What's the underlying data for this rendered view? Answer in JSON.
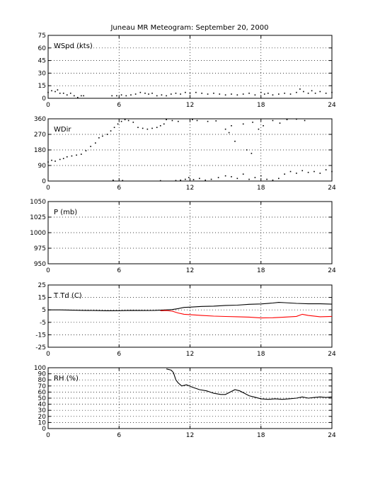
{
  "title": "Juneau MR Meteogram: September 20, 2000",
  "chart_data": [
    {
      "type": "scatter",
      "label": "WSpd (kts)",
      "xlim": [
        0,
        24
      ],
      "ylim": [
        0,
        75
      ],
      "x_ticks": [
        0,
        6,
        12,
        18,
        24
      ],
      "y_ticks": [
        0,
        15,
        30,
        45,
        60,
        75
      ],
      "grid": true,
      "series": [
        {
          "color": "#000000",
          "points": [
            [
              0,
              7
            ],
            [
              0.3,
              9
            ],
            [
              0.6,
              8
            ],
            [
              0.8,
              10
            ],
            [
              1.0,
              6
            ],
            [
              1.3,
              6
            ],
            [
              1.6,
              4
            ],
            [
              1.9,
              6
            ],
            [
              2.2,
              3
            ],
            [
              2.5,
              1
            ],
            [
              2.8,
              3
            ],
            [
              3.0,
              3
            ],
            [
              5.4,
              3
            ],
            [
              5.8,
              3
            ],
            [
              6.2,
              4
            ],
            [
              6.6,
              3
            ],
            [
              7.0,
              4
            ],
            [
              7.4,
              5
            ],
            [
              7.8,
              7
            ],
            [
              8.2,
              6
            ],
            [
              8.5,
              5
            ],
            [
              8.8,
              6
            ],
            [
              9.2,
              3
            ],
            [
              9.6,
              4
            ],
            [
              10.0,
              3
            ],
            [
              10.4,
              5
            ],
            [
              10.8,
              6
            ],
            [
              11.2,
              5
            ],
            [
              11.6,
              7
            ],
            [
              12.0,
              6
            ],
            [
              12.5,
              7
            ],
            [
              13.0,
              6
            ],
            [
              13.5,
              5
            ],
            [
              14.0,
              6
            ],
            [
              14.5,
              5
            ],
            [
              15.0,
              4
            ],
            [
              15.5,
              5
            ],
            [
              16.0,
              4
            ],
            [
              16.5,
              5
            ],
            [
              17.0,
              6
            ],
            [
              17.5,
              4
            ],
            [
              18.0,
              7
            ],
            [
              18.3,
              5
            ],
            [
              18.6,
              6
            ],
            [
              19.0,
              4
            ],
            [
              19.5,
              5
            ],
            [
              20.0,
              6
            ],
            [
              20.5,
              5
            ],
            [
              21.0,
              7
            ],
            [
              21.3,
              11
            ],
            [
              21.6,
              8
            ],
            [
              22.0,
              6
            ],
            [
              22.3,
              9
            ],
            [
              22.6,
              6
            ],
            [
              23.0,
              8
            ],
            [
              23.5,
              6
            ],
            [
              24.0,
              7
            ]
          ]
        }
      ]
    },
    {
      "type": "scatter",
      "label": "WDir",
      "xlim": [
        0,
        24
      ],
      "ylim": [
        0,
        360
      ],
      "x_ticks": [
        0,
        6,
        12,
        18,
        24
      ],
      "y_ticks": [
        0,
        90,
        180,
        270,
        360
      ],
      "grid": true,
      "series": [
        {
          "color": "#000000",
          "points": [
            [
              0,
              110
            ],
            [
              0.3,
              120
            ],
            [
              0.6,
              115
            ],
            [
              1.0,
              125
            ],
            [
              1.3,
              130
            ],
            [
              1.6,
              140
            ],
            [
              2.0,
              145
            ],
            [
              2.4,
              150
            ],
            [
              2.8,
              155
            ],
            [
              3.2,
              175
            ],
            [
              3.6,
              200
            ],
            [
              4.0,
              220
            ],
            [
              4.3,
              250
            ],
            [
              4.6,
              260
            ],
            [
              5.0,
              270
            ],
            [
              5.3,
              290
            ],
            [
              5.6,
              310
            ],
            [
              5.9,
              330
            ],
            [
              6.2,
              345
            ],
            [
              6.5,
              355
            ],
            [
              6.8,
              350
            ],
            [
              7.2,
              340
            ],
            [
              7.6,
              310
            ],
            [
              8.0,
              305
            ],
            [
              8.4,
              300
            ],
            [
              8.8,
              305
            ],
            [
              9.2,
              310
            ],
            [
              9.5,
              320
            ],
            [
              9.8,
              330
            ],
            [
              10.0,
              355
            ],
            [
              10.5,
              350
            ],
            [
              11.0,
              345
            ],
            [
              5.5,
              5
            ],
            [
              6.3,
              3
            ],
            [
              9.5,
              2
            ],
            [
              10.8,
              3
            ],
            [
              11.2,
              5
            ],
            [
              11.6,
              10
            ],
            [
              11.9,
              20
            ],
            [
              12.3,
              8
            ],
            [
              12.8,
              15
            ],
            [
              13.3,
              5
            ],
            [
              13.8,
              10
            ],
            [
              14.4,
              20
            ],
            [
              15.0,
              30
            ],
            [
              15.5,
              25
            ],
            [
              16.0,
              15
            ],
            [
              16.5,
              40
            ],
            [
              17.0,
              10
            ],
            [
              17.5,
              20
            ],
            [
              18.0,
              30
            ],
            [
              18.5,
              10
            ],
            [
              19.0,
              5
            ],
            [
              19.5,
              15
            ],
            [
              20.0,
              40
            ],
            [
              20.5,
              55
            ],
            [
              21.0,
              45
            ],
            [
              21.5,
              60
            ],
            [
              22.0,
              50
            ],
            [
              22.5,
              55
            ],
            [
              23.0,
              45
            ],
            [
              23.5,
              65
            ],
            [
              24.0,
              55
            ],
            [
              12.2,
              355
            ],
            [
              12.6,
              350
            ],
            [
              13.5,
              345
            ],
            [
              14.2,
              348
            ],
            [
              15.0,
              300
            ],
            [
              15.3,
              280
            ],
            [
              15.5,
              320
            ],
            [
              16.5,
              330
            ],
            [
              17.3,
              340
            ],
            [
              17.8,
              300
            ],
            [
              18.2,
              320
            ],
            [
              19.0,
              350
            ],
            [
              19.6,
              335
            ],
            [
              20.2,
              355
            ],
            [
              21.0,
              358
            ],
            [
              21.7,
              350
            ],
            [
              17.2,
              160
            ],
            [
              16.8,
              180
            ],
            [
              15.8,
              230
            ]
          ]
        }
      ]
    },
    {
      "type": "line",
      "label": "P (mb)",
      "xlim": [
        0,
        24
      ],
      "ylim": [
        950,
        1050
      ],
      "x_ticks": [
        0,
        6,
        12,
        18,
        24
      ],
      "y_ticks": [
        950,
        975,
        1000,
        1025,
        1050
      ],
      "grid": true,
      "series": []
    },
    {
      "type": "line",
      "label": "T Td (C)",
      "xlim": [
        0,
        24
      ],
      "ylim": [
        -25,
        25
      ],
      "x_ticks": [
        0,
        6,
        12,
        18,
        24
      ],
      "y_ticks": [
        -25,
        -15,
        -5,
        5,
        15,
        25
      ],
      "grid": true,
      "series": [
        {
          "color": "#000000",
          "points": [
            [
              0,
              5
            ],
            [
              1,
              5
            ],
            [
              2,
              4.8
            ],
            [
              3,
              4.6
            ],
            [
              4,
              4.5
            ],
            [
              5,
              4.3
            ],
            [
              6,
              4.4
            ],
            [
              7,
              4.6
            ],
            [
              8,
              4.5
            ],
            [
              9,
              4.6
            ],
            [
              10,
              5
            ],
            [
              10.5,
              5.3
            ],
            [
              11,
              6
            ],
            [
              11.5,
              7
            ],
            [
              12,
              7.2
            ],
            [
              13,
              7.8
            ],
            [
              14,
              8
            ],
            [
              15,
              8.6
            ],
            [
              16,
              8.8
            ],
            [
              17,
              9.5
            ],
            [
              18,
              9.8
            ],
            [
              19,
              10.5
            ],
            [
              19.5,
              11
            ],
            [
              20,
              10.8
            ],
            [
              21,
              10.2
            ],
            [
              22,
              9.9
            ],
            [
              23,
              9.9
            ],
            [
              24,
              9.6
            ]
          ]
        },
        {
          "color": "#ff0000",
          "points": [
            [
              9.5,
              4.3
            ],
            [
              10,
              4.5
            ],
            [
              10.5,
              4
            ],
            [
              11,
              2.5
            ],
            [
              11.5,
              1.5
            ],
            [
              12,
              1.2
            ],
            [
              13,
              0.5
            ],
            [
              14,
              0
            ],
            [
              15,
              -0.3
            ],
            [
              16,
              -0.5
            ],
            [
              17,
              -0.8
            ],
            [
              18,
              -1.5
            ],
            [
              19,
              -1.3
            ],
            [
              20,
              -0.8
            ],
            [
              21,
              -0.2
            ],
            [
              21.5,
              1.5
            ],
            [
              22,
              0.5
            ],
            [
              23,
              -0.5
            ],
            [
              24,
              -0.2
            ]
          ]
        }
      ]
    },
    {
      "type": "line",
      "label": "RH (%)",
      "xlim": [
        0,
        24
      ],
      "ylim": [
        0,
        100
      ],
      "x_ticks": [
        0,
        6,
        12,
        18,
        24
      ],
      "y_ticks": [
        0,
        10,
        20,
        30,
        40,
        50,
        60,
        70,
        80,
        90,
        100
      ],
      "grid": true,
      "series": [
        {
          "color": "#000000",
          "points": [
            [
              10,
              98
            ],
            [
              10.4,
              96
            ],
            [
              10.6,
              92
            ],
            [
              10.8,
              80
            ],
            [
              11.0,
              75
            ],
            [
              11.3,
              70
            ],
            [
              11.7,
              72
            ],
            [
              12.2,
              68
            ],
            [
              12.8,
              64
            ],
            [
              13.4,
              62
            ],
            [
              14.0,
              58
            ],
            [
              14.6,
              56
            ],
            [
              15.0,
              56
            ],
            [
              15.4,
              60
            ],
            [
              15.8,
              64
            ],
            [
              16.2,
              62
            ],
            [
              16.6,
              58
            ],
            [
              17.0,
              54
            ],
            [
              17.4,
              52
            ],
            [
              18.0,
              49
            ],
            [
              18.6,
              48
            ],
            [
              19.2,
              49
            ],
            [
              19.8,
              48
            ],
            [
              20.4,
              49
            ],
            [
              21.0,
              50
            ],
            [
              21.5,
              52
            ],
            [
              22.0,
              50
            ],
            [
              22.5,
              51
            ],
            [
              23.0,
              52
            ],
            [
              23.5,
              51
            ],
            [
              24.0,
              52
            ]
          ]
        }
      ]
    }
  ]
}
